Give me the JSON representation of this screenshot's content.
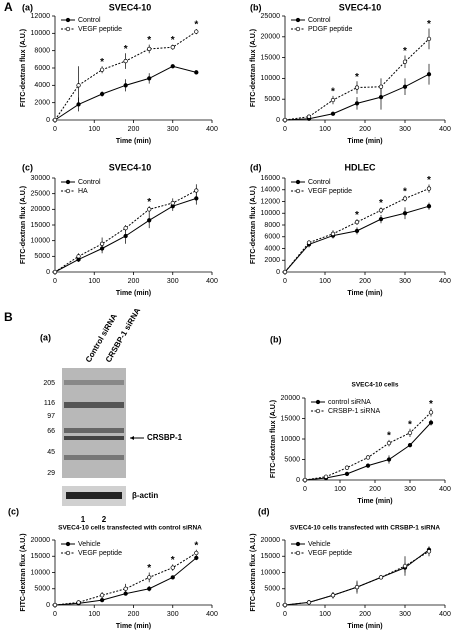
{
  "sections": [
    "A",
    "B"
  ],
  "blot": {
    "panel": "(a)",
    "lanes_header": [
      "Control siRNA",
      "CRSBP-1 siRNA"
    ],
    "mw_markers": [
      "205",
      "116",
      "97",
      "66",
      "45",
      "29"
    ],
    "band_label": "CRSBP-1",
    "loading_label": "β-actin",
    "lane_numbers": [
      "1",
      "2"
    ]
  },
  "chart_data": [
    {
      "type": "line",
      "panel": "(a)",
      "title": "SVEC4-10",
      "x_label": "Time (min)",
      "y_label": "FITC-dextran flux (A.U.)",
      "x": [
        0,
        60,
        120,
        180,
        240,
        300,
        360
      ],
      "xlim": [
        0,
        400
      ],
      "xticks": [
        0,
        100,
        200,
        300,
        400
      ],
      "ylim": [
        0,
        12000
      ],
      "yticks": [
        0,
        2000,
        4000,
        6000,
        8000,
        10000,
        12000
      ],
      "series": [
        {
          "name": "Control",
          "color": "#000000",
          "linestyle": "solid",
          "marker": "filled",
          "values": [
            0,
            1800,
            3000,
            4000,
            4800,
            6200,
            5500
          ],
          "errors": [
            0,
            800,
            300,
            700,
            600,
            200,
            200
          ]
        },
        {
          "name": "VEGF peptide",
          "color": "#000000",
          "linestyle": "dotted",
          "marker": "open",
          "values": [
            0,
            4000,
            5800,
            6800,
            8200,
            8400,
            10200
          ],
          "errors": [
            0,
            2200,
            400,
            900,
            500,
            300,
            300
          ]
        }
      ],
      "significance": {
        "label": "*",
        "x": [
          120,
          180,
          240,
          300,
          360
        ]
      }
    },
    {
      "type": "line",
      "panel": "(b)",
      "title": "SVEC4-10",
      "x_label": "Time (min)",
      "y_label": "FITC-dextran flux (A.U.)",
      "x": [
        0,
        60,
        120,
        180,
        240,
        300,
        360
      ],
      "xlim": [
        0,
        400
      ],
      "xticks": [
        0,
        100,
        200,
        300,
        400
      ],
      "ylim": [
        0,
        25000
      ],
      "yticks": [
        0,
        5000,
        10000,
        15000,
        20000,
        25000
      ],
      "series": [
        {
          "name": "Control",
          "color": "#000000",
          "linestyle": "solid",
          "marker": "filled",
          "values": [
            0,
            300,
            1500,
            4000,
            5500,
            8000,
            11000
          ],
          "errors": [
            0,
            200,
            300,
            1500,
            3000,
            2000,
            2500
          ]
        },
        {
          "name": "PDGF peptide",
          "color": "#000000",
          "linestyle": "dotted",
          "marker": "open",
          "values": [
            0,
            800,
            4800,
            7800,
            8000,
            14000,
            19500
          ],
          "errors": [
            0,
            300,
            1000,
            1500,
            2000,
            1500,
            2500
          ]
        }
      ],
      "significance": {
        "label": "*",
        "x": [
          120,
          180,
          300,
          360
        ]
      }
    },
    {
      "type": "line",
      "panel": "(c)",
      "title": "SVEC4-10",
      "x_label": "Time (min)",
      "y_label": "FITC-dextran flux (A.U.)",
      "x": [
        0,
        60,
        120,
        180,
        240,
        300,
        360
      ],
      "xlim": [
        0,
        400
      ],
      "xticks": [
        0,
        100,
        200,
        300,
        400
      ],
      "ylim": [
        0,
        30000
      ],
      "yticks": [
        0,
        5000,
        10000,
        15000,
        20000,
        25000,
        30000
      ],
      "series": [
        {
          "name": "Control",
          "color": "#000000",
          "linestyle": "solid",
          "marker": "filled",
          "values": [
            0,
            4000,
            7500,
            11500,
            16500,
            21000,
            23500
          ],
          "errors": [
            0,
            800,
            1500,
            2500,
            2500,
            1500,
            2000
          ]
        },
        {
          "name": "HA",
          "color": "#000000",
          "linestyle": "dotted",
          "marker": "open",
          "values": [
            0,
            5000,
            9000,
            14000,
            20000,
            22000,
            26000
          ],
          "errors": [
            0,
            1000,
            2000,
            1000,
            1000,
            1500,
            2000
          ]
        }
      ],
      "significance": {
        "label": "*",
        "x": [
          240
        ]
      }
    },
    {
      "type": "line",
      "panel": "(d)",
      "title": "HDLEC",
      "x_label": "Time (min)",
      "y_label": "FITC-dextran flux (A.U.)",
      "x": [
        0,
        60,
        120,
        180,
        240,
        300,
        360
      ],
      "xlim": [
        0,
        400
      ],
      "xticks": [
        0,
        100,
        200,
        300,
        400
      ],
      "ylim": [
        0,
        16000
      ],
      "yticks": [
        0,
        2000,
        4000,
        6000,
        8000,
        10000,
        12000,
        14000,
        16000
      ],
      "series": [
        {
          "name": "Control",
          "color": "#000000",
          "linestyle": "solid",
          "marker": "filled",
          "values": [
            0,
            4700,
            6200,
            7000,
            9000,
            10000,
            11200
          ],
          "errors": [
            0,
            500,
            500,
            600,
            700,
            1000,
            600
          ]
        },
        {
          "name": "VEGF peptide",
          "color": "#000000",
          "linestyle": "dotted",
          "marker": "open",
          "values": [
            0,
            5000,
            6500,
            8500,
            10500,
            12500,
            14200
          ],
          "errors": [
            0,
            400,
            600,
            500,
            500,
            500,
            700
          ]
        }
      ],
      "significance": {
        "label": "*",
        "x": [
          180,
          240,
          300,
          360
        ]
      }
    },
    {
      "type": "line",
      "panel": "(b)",
      "title": "SVEC4-10 cells",
      "x_label": "Time (min)",
      "y_label": "FITC-dextran flux (A.U.)",
      "x": [
        0,
        60,
        120,
        180,
        240,
        300,
        360
      ],
      "xlim": [
        0,
        400
      ],
      "xticks": [
        0,
        100,
        200,
        300,
        400
      ],
      "ylim": [
        0,
        20000
      ],
      "yticks": [
        0,
        5000,
        10000,
        15000,
        20000
      ],
      "series": [
        {
          "name": "control siRNA",
          "color": "#000000",
          "linestyle": "solid",
          "marker": "filled",
          "values": [
            0,
            500,
            1500,
            3500,
            5000,
            8500,
            14000
          ],
          "errors": [
            0,
            200,
            300,
            500,
            1000,
            500,
            700
          ]
        },
        {
          "name": "CRSBP-1 siRNA",
          "color": "#000000",
          "linestyle": "dotted",
          "marker": "open",
          "values": [
            0,
            800,
            3000,
            5500,
            9000,
            11500,
            16500
          ],
          "errors": [
            0,
            300,
            500,
            500,
            800,
            1000,
            1000
          ]
        }
      ],
      "significance": {
        "label": "*",
        "x": [
          240,
          300,
          360
        ]
      }
    },
    {
      "type": "line",
      "panel": "(c)",
      "title": "SVEC4-10 cells transfected with control siRNA",
      "x_label": "Time (min)",
      "y_label": "FITC-dextran flux (A.U.)",
      "x": [
        0,
        60,
        120,
        180,
        240,
        300,
        360
      ],
      "xlim": [
        0,
        400
      ],
      "xticks": [
        0,
        100,
        200,
        300,
        400
      ],
      "ylim": [
        0,
        20000
      ],
      "yticks": [
        0,
        5000,
        10000,
        15000,
        20000
      ],
      "series": [
        {
          "name": "Vehicle",
          "color": "#000000",
          "linestyle": "solid",
          "marker": "filled",
          "values": [
            0,
            500,
            1500,
            3500,
            5000,
            8500,
            14500
          ],
          "errors": [
            0,
            300,
            500,
            500,
            800,
            500,
            700
          ]
        },
        {
          "name": "VEGF peptide",
          "color": "#000000",
          "linestyle": "dotted",
          "marker": "open",
          "values": [
            0,
            800,
            3000,
            5000,
            8500,
            11500,
            16000
          ],
          "errors": [
            0,
            500,
            1000,
            1500,
            1500,
            1000,
            1000
          ]
        }
      ],
      "significance": {
        "label": "*",
        "x": [
          240,
          300,
          360
        ]
      }
    },
    {
      "type": "line",
      "panel": "(d)",
      "title": "SVEC4-10 cells transfected with CRSBP-1 siRNA",
      "x_label": "Time (min)",
      "y_label": "FITC-dextran flux (A.U.)",
      "x": [
        0,
        60,
        120,
        180,
        240,
        300,
        360
      ],
      "xlim": [
        0,
        400
      ],
      "xticks": [
        0,
        100,
        200,
        300,
        400
      ],
      "ylim": [
        0,
        20000
      ],
      "yticks": [
        0,
        5000,
        10000,
        15000,
        20000
      ],
      "series": [
        {
          "name": "Vehicle",
          "color": "#000000",
          "linestyle": "solid",
          "marker": "filled",
          "values": [
            0,
            800,
            3000,
            5500,
            8500,
            11500,
            17000
          ],
          "errors": [
            0,
            300,
            1000,
            1500,
            500,
            1500,
            1000
          ]
        },
        {
          "name": "VEGF peptide",
          "color": "#000000",
          "linestyle": "dotted",
          "marker": "open",
          "values": [
            0,
            800,
            3000,
            5500,
            8500,
            12000,
            16500
          ],
          "errors": [
            0,
            300,
            1000,
            2000,
            500,
            3000,
            1500
          ]
        }
      ],
      "significance": {
        "label": "*",
        "x": []
      }
    }
  ]
}
